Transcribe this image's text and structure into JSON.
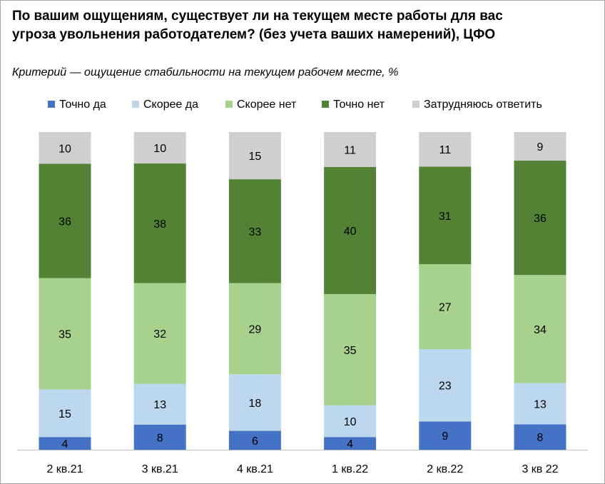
{
  "chart_data": {
    "type": "bar",
    "stacked": true,
    "title": "По вашим ощущениям, существует ли на текущем месте работы для вас угроза увольнения работодателем? (без учета ваших намерений), ЦФО",
    "subtitle": "Критерий — ощущение стабильности на текущем рабочем месте, %",
    "categories": [
      "2 кв.21",
      "3 кв.21",
      "4 кв.21",
      "1 кв.22",
      "2 кв.22",
      "3 кв 22"
    ],
    "series": [
      {
        "name": "Точно да",
        "color": "#4472c4",
        "label_color": "#000000",
        "values": [
          4,
          8,
          6,
          4,
          9,
          8
        ]
      },
      {
        "name": "Скорее да",
        "color": "#bdd7ee",
        "label_color": "#000000",
        "values": [
          15,
          13,
          18,
          10,
          23,
          13
        ]
      },
      {
        "name": "Скорее нет",
        "color": "#a9d18e",
        "label_color": "#000000",
        "values": [
          35,
          32,
          29,
          35,
          27,
          34
        ]
      },
      {
        "name": "Точно нет",
        "color": "#548235",
        "label_color": "#000000",
        "values": [
          36,
          38,
          33,
          40,
          31,
          36
        ]
      },
      {
        "name": "Затрудняюсь ответить",
        "color": "#d0cece",
        "label_color": "#000000",
        "values": [
          10,
          10,
          15,
          11,
          11,
          9
        ]
      }
    ],
    "legend_position": "top",
    "grid": false,
    "value_labels": true
  }
}
